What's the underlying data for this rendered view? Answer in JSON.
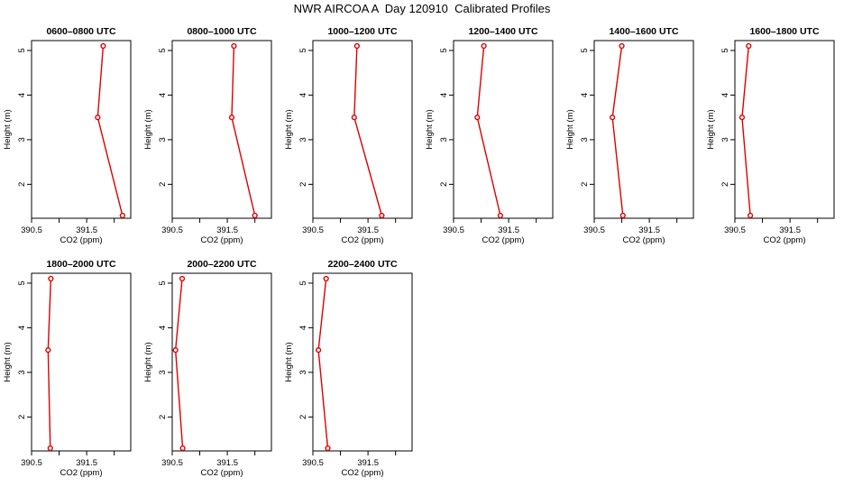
{
  "title": "NWR AIRCOA A  Day 120910  Calibrated Profiles",
  "colors": {
    "series": "#dd0000",
    "frame": "#000000"
  },
  "chart_data": [
    {
      "type": "line",
      "title": "0600–0800 UTC",
      "xlabel": "CO2 (ppm)",
      "ylabel": "Height (m)",
      "xlim": [
        390.5,
        392.3
      ],
      "ylim": [
        1.3,
        5.1
      ],
      "xticks": [
        "390.5",
        "391.5"
      ],
      "yticks": [
        "2",
        "3",
        "4",
        "5"
      ],
      "points": [
        [
          391.8,
          5.1
        ],
        [
          391.7,
          3.5
        ],
        [
          392.15,
          1.3
        ]
      ]
    },
    {
      "type": "line",
      "title": "0800–1000 UTC",
      "xlabel": "CO2 (ppm)",
      "ylabel": "Height (m)",
      "xlim": [
        390.5,
        392.3
      ],
      "ylim": [
        1.3,
        5.1
      ],
      "xticks": [
        "390.5",
        "391.5"
      ],
      "yticks": [
        "2",
        "3",
        "4",
        "5"
      ],
      "points": [
        [
          391.62,
          5.1
        ],
        [
          391.58,
          3.5
        ],
        [
          392.0,
          1.3
        ]
      ]
    },
    {
      "type": "line",
      "title": "1000–1200 UTC",
      "xlabel": "CO2 (ppm)",
      "ylabel": "Height (m)",
      "xlim": [
        390.5,
        392.3
      ],
      "ylim": [
        1.3,
        5.1
      ],
      "xticks": [
        "390.5",
        "391.5"
      ],
      "yticks": [
        "2",
        "3",
        "4",
        "5"
      ],
      "points": [
        [
          391.3,
          5.1
        ],
        [
          391.25,
          3.5
        ],
        [
          391.75,
          1.3
        ]
      ]
    },
    {
      "type": "line",
      "title": "1200–1400 UTC",
      "xlabel": "CO2 (ppm)",
      "ylabel": "Height (m)",
      "xlim": [
        390.5,
        392.3
      ],
      "ylim": [
        1.3,
        5.1
      ],
      "xticks": [
        "390.5",
        "391.5"
      ],
      "yticks": [
        "2",
        "3",
        "4",
        "5"
      ],
      "points": [
        [
          391.05,
          5.1
        ],
        [
          390.93,
          3.5
        ],
        [
          391.35,
          1.3
        ]
      ]
    },
    {
      "type": "line",
      "title": "1400–1600 UTC",
      "xlabel": "CO2 (ppm)",
      "ylabel": "Height (m)",
      "xlim": [
        390.5,
        392.3
      ],
      "ylim": [
        1.3,
        5.1
      ],
      "xticks": [
        "390.5",
        "391.5"
      ],
      "yticks": [
        "2",
        "3",
        "4",
        "5"
      ],
      "points": [
        [
          391.0,
          5.1
        ],
        [
          390.83,
          3.5
        ],
        [
          391.02,
          1.3
        ]
      ]
    },
    {
      "type": "line",
      "title": "1600–1800 UTC",
      "xlabel": "CO2 (ppm)",
      "ylabel": "Height (m)",
      "xlim": [
        390.5,
        392.3
      ],
      "ylim": [
        1.3,
        5.1
      ],
      "xticks": [
        "390.5",
        "391.5"
      ],
      "yticks": [
        "2",
        "3",
        "4",
        "5"
      ],
      "points": [
        [
          390.75,
          5.1
        ],
        [
          390.63,
          3.5
        ],
        [
          390.78,
          1.3
        ]
      ]
    },
    {
      "type": "line",
      "title": "1800–2000 UTC",
      "xlabel": "CO2 (ppm)",
      "ylabel": "Height (m)",
      "xlim": [
        390.5,
        392.3
      ],
      "ylim": [
        1.3,
        5.1
      ],
      "xticks": [
        "390.5",
        "391.5"
      ],
      "yticks": [
        "2",
        "3",
        "4",
        "5"
      ],
      "points": [
        [
          390.85,
          5.1
        ],
        [
          390.8,
          3.5
        ],
        [
          390.84,
          1.3
        ]
      ]
    },
    {
      "type": "line",
      "title": "2000–2200 UTC",
      "xlabel": "CO2 (ppm)",
      "ylabel": "Height (m)",
      "xlim": [
        390.5,
        392.3
      ],
      "ylim": [
        1.3,
        5.1
      ],
      "xticks": [
        "390.5",
        "391.5"
      ],
      "yticks": [
        "2",
        "3",
        "4",
        "5"
      ],
      "points": [
        [
          390.68,
          5.1
        ],
        [
          390.56,
          3.5
        ],
        [
          390.69,
          1.3
        ]
      ]
    },
    {
      "type": "line",
      "title": "2200–2400 UTC",
      "xlabel": "CO2 (ppm)",
      "ylabel": "Height (m)",
      "xlim": [
        390.5,
        392.3
      ],
      "ylim": [
        1.3,
        5.1
      ],
      "xticks": [
        "390.5",
        "391.5"
      ],
      "yticks": [
        "2",
        "3",
        "4",
        "5"
      ],
      "points": [
        [
          390.74,
          5.1
        ],
        [
          390.6,
          3.5
        ],
        [
          390.77,
          1.3
        ]
      ]
    }
  ]
}
